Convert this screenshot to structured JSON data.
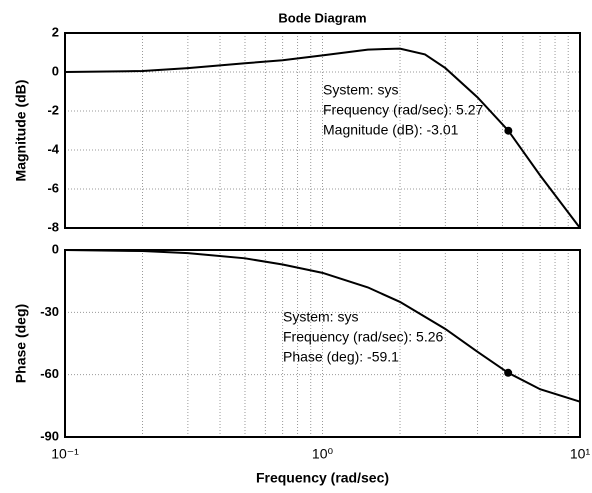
{
  "chart_data": [
    {
      "type": "line",
      "title": "Bode Diagram",
      "ylabel": "Magnitude (dB)",
      "xscale": "log",
      "grid": true,
      "color": "#000000",
      "x": [
        0.1,
        0.2,
        0.3,
        0.5,
        0.7,
        1,
        1.5,
        2,
        2.5,
        3,
        4,
        5.27,
        7,
        10
      ],
      "values": [
        0,
        0.05,
        0.2,
        0.45,
        0.6,
        0.85,
        1.15,
        1.2,
        0.9,
        0.2,
        -1.3,
        -3.01,
        -5.3,
        -8
      ],
      "xlim": [
        0.1,
        10
      ],
      "xticks": [
        {
          "value": 0.1,
          "label": "10⁻¹"
        },
        {
          "value": 1,
          "label": "10⁰"
        },
        {
          "value": 10,
          "label": "10¹"
        }
      ],
      "xminorticks": [
        0.2,
        0.3,
        0.4,
        0.5,
        0.6,
        0.7,
        0.8,
        0.9,
        2,
        3,
        4,
        5,
        6,
        7,
        8,
        9
      ],
      "ylim": [
        -8,
        2
      ],
      "yticks": [
        2,
        0,
        -2,
        -4,
        -6,
        -8
      ],
      "datatip": {
        "x": 5.27,
        "y": -3.01,
        "lines": [
          "System: sys",
          "Frequency (rad/sec): 5.27",
          "Magnitude (dB): -3.01"
        ]
      }
    },
    {
      "type": "line",
      "ylabel": "Phase (deg)",
      "xlabel": "Frequency (rad/sec)",
      "xscale": "log",
      "grid": true,
      "color": "#000000",
      "x": [
        0.1,
        0.2,
        0.3,
        0.5,
        0.7,
        1,
        1.5,
        2,
        3,
        4,
        5.26,
        7,
        10
      ],
      "values": [
        0,
        -0.5,
        -1.5,
        -4,
        -7,
        -11,
        -18,
        -25,
        -38,
        -49,
        -59.1,
        -67,
        -73
      ],
      "xlim": [
        0.1,
        10
      ],
      "xticks": [
        {
          "value": 0.1,
          "label": "10⁻¹"
        },
        {
          "value": 1,
          "label": "10⁰"
        },
        {
          "value": 10,
          "label": "10¹"
        }
      ],
      "xminorticks": [
        0.2,
        0.3,
        0.4,
        0.5,
        0.6,
        0.7,
        0.8,
        0.9,
        2,
        3,
        4,
        5,
        6,
        7,
        8,
        9
      ],
      "ylim": [
        -90,
        0
      ],
      "yticks": [
        0,
        -30,
        -60,
        -90
      ],
      "datatip": {
        "x": 5.26,
        "y": -59.1,
        "lines": [
          "System: sys",
          "Frequency (rad/sec): 5.26",
          "Phase (deg): -59.1"
        ]
      }
    }
  ]
}
